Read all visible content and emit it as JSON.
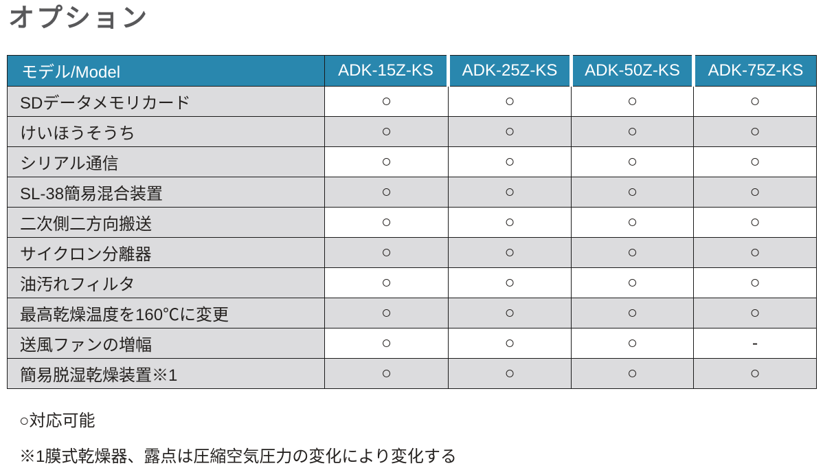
{
  "page": {
    "title": "オプション"
  },
  "table": {
    "header": {
      "model_label": "モデル/Model",
      "columns": [
        "ADK-15Z-KS",
        "ADK-25Z-KS",
        "ADK-50Z-KS",
        "ADK-75Z-KS"
      ]
    },
    "rows": [
      {
        "label": "SDデータメモリカード",
        "values": [
          "○",
          "○",
          "○",
          "○"
        ]
      },
      {
        "label": "けいほうそうち",
        "values": [
          "○",
          "○",
          "○",
          "○"
        ]
      },
      {
        "label": "シリアル通信",
        "values": [
          "○",
          "○",
          "○",
          "○"
        ]
      },
      {
        "label": "SL-38簡易混合装置",
        "values": [
          "○",
          "○",
          "○",
          "○"
        ]
      },
      {
        "label": "二次側二方向搬送",
        "values": [
          "○",
          "○",
          "○",
          "○"
        ]
      },
      {
        "label": "サイクロン分離器",
        "values": [
          "○",
          "○",
          "○",
          "○"
        ]
      },
      {
        "label": "油汚れフィルタ",
        "values": [
          "○",
          "○",
          "○",
          "○"
        ]
      },
      {
        "label": "最高乾燥温度を160℃に変更",
        "values": [
          "○",
          "○",
          "○",
          "○"
        ]
      },
      {
        "label": "送風ファンの増幅",
        "values": [
          "○",
          "○",
          "○",
          "-"
        ]
      },
      {
        "label": "簡易脱湿乾燥装置※1",
        "values": [
          "○",
          "○",
          "○",
          "○"
        ]
      }
    ],
    "legend": {
      "circle_meaning": "○対応可能",
      "footnote": "※1膜式乾燥器、露点は圧縮空気圧力の変化により変化する"
    }
  },
  "colors": {
    "header_blue": "#2987ae",
    "row_gray": "#dcdcde",
    "border_dark": "#1a1a1a",
    "title_gray": "#58585a"
  }
}
